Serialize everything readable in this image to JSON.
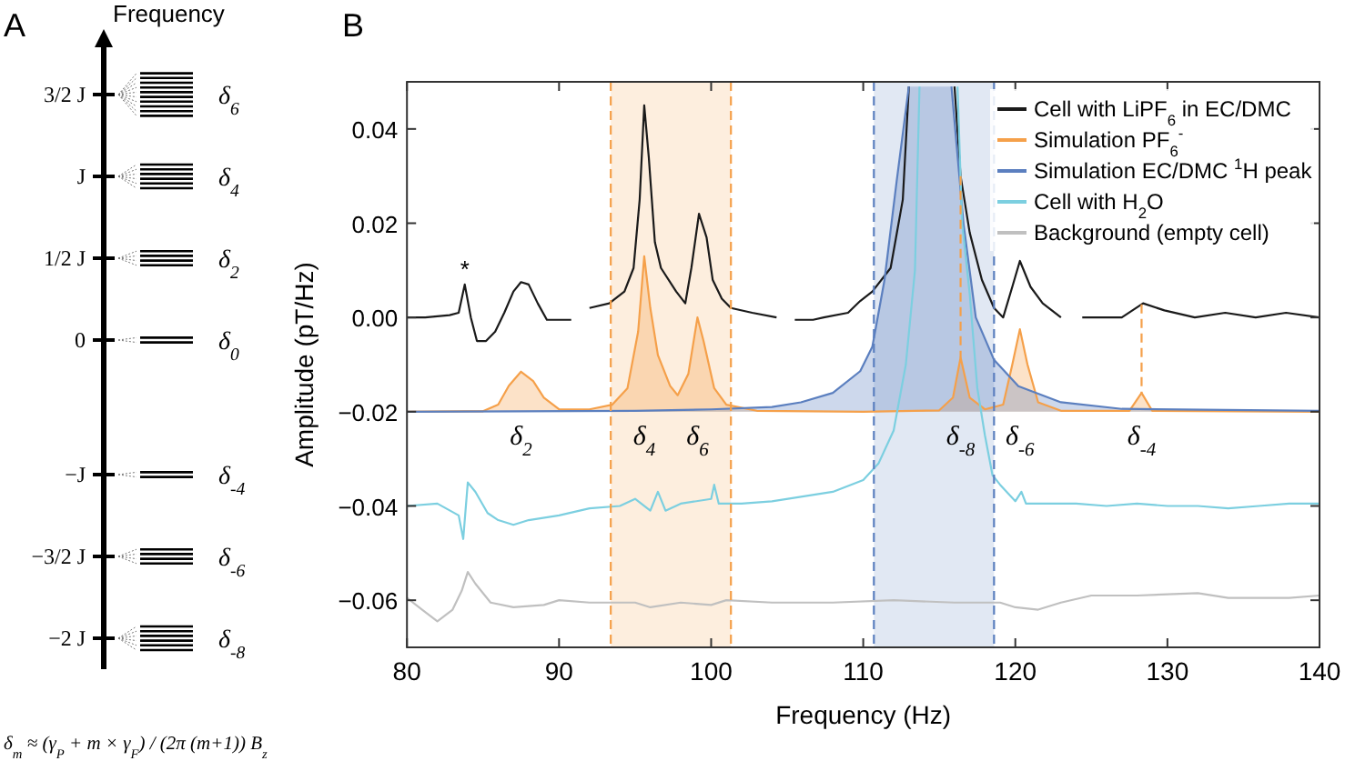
{
  "chart_data": [
    {
      "type": "other",
      "title": "A",
      "ylabel": "Frequency",
      "categories": [
        "3/2 J",
        "J",
        "1/2 J",
        "0",
        "−J",
        "−3/2 J",
        "−2 J"
      ],
      "y2_categories": [
        "δ$_{6}$",
        "δ$_{4}$",
        "δ$_{2}$",
        "δ$_{0}$",
        "δ$_{-4}$",
        "δ$_{-6}$",
        "δ$_{-8}$"
      ],
      "annotations": [
        "δ$_{m}$ ≈ (γ$_{P}$ + m × γ$_{F}$) / (2π (m+1)) B$_{z}$"
      ]
    },
    {
      "type": "line",
      "title": "B",
      "xlabel": "Frequency (Hz)",
      "ylabel": "Amplitude (pT/Hz)",
      "xlim": [
        80,
        140
      ],
      "ylim": [
        -0.07,
        0.05
      ],
      "xticks": [
        80,
        90,
        100,
        110,
        120,
        130,
        140
      ],
      "yticks": [
        {
          "value": -0.06,
          "label": "−0.06"
        },
        {
          "value": -0.04,
          "label": "−0.04"
        },
        {
          "value": -0.02,
          "label": "−0.02"
        },
        {
          "value": 0,
          "label": "0.00"
        },
        {
          "value": 0.02,
          "label": "0.02"
        },
        {
          "value": 0.04,
          "label": "0.04"
        }
      ],
      "grid": false,
      "legend": "top right",
      "bands": [
        {
          "axis": "x",
          "from": 93.4,
          "to": 101.3,
          "color": "#f5a04a"
        },
        {
          "axis": "x",
          "from": 110.7,
          "to": 118.6,
          "color": "#5b7fbf"
        }
      ],
      "ref_lines": [
        {
          "axis": "x",
          "value": 93.4,
          "color": "#f5a04a",
          "line_style": "dashed"
        },
        {
          "axis": "x",
          "value": 101.3,
          "color": "#f5a04a",
          "line_style": "dashed"
        },
        {
          "axis": "x",
          "value": 110.7,
          "color": "#5b7fbf",
          "line_style": "dashed"
        },
        {
          "axis": "x",
          "value": 118.6,
          "color": "#5b7fbf",
          "line_style": "dashed"
        },
        {
          "axis": "x",
          "value": 116.4,
          "color": "#f5a04a",
          "line_style": "dashed"
        },
        {
          "axis": "x",
          "value": 128.3,
          "color": "#f5a04a",
          "line_style": "dashed"
        }
      ],
      "annotations": [
        {
          "text": "*",
          "x": 83.8,
          "y": 0.007
        },
        {
          "text": "δ$_{2}$",
          "x": 87.5,
          "y": -0.02
        },
        {
          "text": "δ$_{4}$",
          "x": 95.6,
          "y": -0.02
        },
        {
          "text": "δ$_{6}$",
          "x": 99.1,
          "y": -0.02
        },
        {
          "text": "δ$_{-8}$",
          "x": 116.4,
          "y": -0.02
        },
        {
          "text": "δ$_{-6}$",
          "x": 120.3,
          "y": -0.02
        },
        {
          "text": "δ$_{-4}$",
          "x": 128.3,
          "y": -0.02
        }
      ],
      "series": [
        {
          "name": "Cell with LiPF$_{6}$ in EC/DMC",
          "color": "#1a1a1a",
          "x": [
            80,
            81.2,
            82.8,
            83.4,
            83.8,
            84.2,
            84.6,
            85.2,
            85.8,
            86.4,
            87,
            87.5,
            88,
            88.6,
            89.2,
            90,
            90.8,
            91.5,
            92,
            93.3,
            94.3,
            94.9,
            95.3,
            95.6,
            95.9,
            96.3,
            96.7,
            97.7,
            98.3,
            98.7,
            99.2,
            99.7,
            100.1,
            100.7,
            101.3,
            102.7,
            104.3,
            105,
            105.5,
            106.7,
            107.4,
            109,
            109.8,
            110.6,
            111.8,
            112.6,
            113,
            114.5,
            116,
            116.4,
            117,
            117.8,
            118.6,
            119.2,
            119.8,
            120.3,
            121,
            121.8,
            123,
            123.7,
            124.4,
            127,
            128.4,
            129.8,
            131.8,
            133.8,
            135.8,
            137.8,
            140
          ],
          "values": [
            0,
            0,
            0.0005,
            0.001,
            0.007,
            0,
            -0.005,
            -0.005,
            -0.003,
            0.001,
            0.0055,
            0.0075,
            0.007,
            0.003,
            -0.0005,
            -0.0005,
            -0.0005,
            null,
            0.002,
            0.003,
            0.0055,
            0.0105,
            0.025,
            0.045,
            0.034,
            0.016,
            0.0105,
            0.0055,
            0.003,
            0.0105,
            0.022,
            0.017,
            0.008,
            0.004,
            0.002,
            0.001,
            0,
            null,
            -0.0005,
            -0.0005,
            0,
            0.001,
            0.0035,
            0.0055,
            0.0105,
            0.025,
            0.049,
            null,
            0.049,
            0.03,
            0.018,
            0.008,
            0.002,
            0,
            0.0065,
            0.012,
            0.0065,
            0.003,
            0,
            null,
            0,
            0,
            0.003,
            0.0015,
            0,
            0.001,
            0,
            0.001,
            0
          ]
        },
        {
          "name": "Simulation PF$_{6}$$^{-}$",
          "type": "area",
          "color": "#f5a04a",
          "x": [
            80,
            85,
            86,
            86.7,
            87.5,
            88.3,
            89,
            90,
            92,
            93.5,
            94.5,
            95.2,
            95.6,
            96,
            96.5,
            97.3,
            97.8,
            98.5,
            99.1,
            99.5,
            100.2,
            101,
            103,
            110,
            115,
            115.9,
            116.4,
            117,
            118,
            119.2,
            119.8,
            120.3,
            120.8,
            121.5,
            123,
            127.5,
            128.3,
            129,
            140
          ],
          "values": [
            -0.02,
            -0.0199,
            -0.0185,
            -0.0145,
            -0.0115,
            -0.0135,
            -0.017,
            -0.0195,
            -0.0195,
            -0.0185,
            -0.015,
            -0.003,
            0.013,
            0.002,
            -0.008,
            -0.0145,
            -0.0165,
            -0.012,
            0,
            -0.005,
            -0.015,
            -0.0185,
            -0.0198,
            -0.02,
            -0.0197,
            -0.017,
            -0.0085,
            -0.017,
            -0.0195,
            -0.0185,
            -0.01,
            -0.0025,
            -0.01,
            -0.018,
            -0.0198,
            -0.0198,
            -0.016,
            -0.0198,
            -0.02
          ]
        },
        {
          "name": "Simulation EC/DMC $^{1}$H peak",
          "type": "area",
          "color": "#5b7fbf",
          "x": [
            80,
            95,
            100,
            104,
            105.9,
            108,
            109.8,
            110.6,
            111.4,
            112.2,
            113,
            114.4,
            115.8,
            116.6,
            117.4,
            118.6,
            120.2,
            123,
            127,
            140
          ],
          "values": [
            -0.02,
            -0.0198,
            -0.0195,
            -0.019,
            -0.018,
            -0.016,
            -0.0114,
            -0.0062,
            0.008,
            0.029,
            0.049,
            null,
            0.049,
            0.0197,
            0,
            -0.009,
            -0.0146,
            -0.018,
            -0.0194,
            -0.0198
          ]
        },
        {
          "name": "Cell with H$_{2}$O",
          "color": "#7ccfe0",
          "x": [
            80,
            82,
            83.4,
            83.7,
            84,
            84.5,
            85.3,
            86,
            87,
            88,
            90,
            92,
            94,
            95,
            96,
            96.5,
            97,
            98,
            100,
            100.2,
            100.5,
            102,
            104,
            106,
            108,
            110,
            111,
            112,
            112.8,
            113.4,
            113.7,
            115,
            116.2,
            116.5,
            117,
            117.5,
            118,
            118.5,
            119,
            120,
            120.4,
            120.7,
            122,
            124,
            126,
            128,
            130,
            132,
            134,
            136,
            138,
            140
          ],
          "values": [
            -0.04,
            -0.0395,
            -0.042,
            -0.047,
            -0.035,
            -0.037,
            -0.0415,
            -0.043,
            -0.044,
            -0.043,
            -0.042,
            -0.0405,
            -0.04,
            -0.0385,
            -0.041,
            -0.037,
            -0.041,
            -0.0395,
            -0.0385,
            -0.0355,
            -0.0395,
            -0.0395,
            -0.039,
            -0.038,
            -0.037,
            -0.0345,
            -0.031,
            -0.024,
            -0.01,
            0.01,
            0.049,
            null,
            0.049,
            0.02,
            0.005,
            -0.015,
            -0.025,
            -0.0335,
            -0.0355,
            -0.039,
            -0.037,
            -0.0395,
            -0.0395,
            -0.0395,
            -0.04,
            -0.0395,
            -0.04,
            -0.04,
            -0.0405,
            -0.04,
            -0.0395,
            -0.0395
          ]
        },
        {
          "name": "Background (empty cell)",
          "color": "#c0c0c0",
          "x": [
            80,
            81,
            82,
            83,
            83.6,
            84,
            84.5,
            85.5,
            87,
            89,
            90,
            92,
            95,
            96,
            98,
            100,
            101,
            104,
            108,
            112,
            116,
            119,
            120,
            121.5,
            123,
            125,
            128,
            132,
            134,
            138,
            140
          ],
          "values": [
            -0.0595,
            -0.062,
            -0.0645,
            -0.062,
            -0.058,
            -0.054,
            -0.0565,
            -0.0605,
            -0.0615,
            -0.061,
            -0.06,
            -0.0605,
            -0.0605,
            -0.0615,
            -0.0605,
            -0.061,
            -0.06,
            -0.0605,
            -0.0605,
            -0.06,
            -0.0605,
            -0.0605,
            -0.0615,
            -0.062,
            -0.0605,
            -0.059,
            -0.059,
            -0.0585,
            -0.0595,
            -0.0595,
            -0.059
          ]
        }
      ]
    }
  ]
}
